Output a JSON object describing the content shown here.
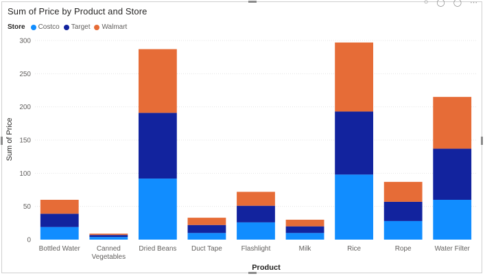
{
  "chart_data": {
    "type": "bar",
    "stacked": true,
    "title": "Sum of Price by Product and Store",
    "xlabel": "Product",
    "ylabel": "Sum of Price",
    "ylim": [
      0,
      300
    ],
    "yticks": [
      0,
      50,
      100,
      150,
      200,
      250,
      300
    ],
    "grid": true,
    "legend_position": "top-left",
    "legend_title": "Store",
    "categories": [
      "Bottled Water",
      "Canned Vegetables",
      "Dried Beans",
      "Duct Tape",
      "Flashlight",
      "Milk",
      "Rice",
      "Rope",
      "Water Filter"
    ],
    "series": [
      {
        "name": "Costco",
        "color": "#118dff",
        "values": [
          19,
          4,
          92,
          10,
          26,
          10,
          98,
          28,
          60
        ]
      },
      {
        "name": "Target",
        "color": "#12239e",
        "values": [
          20,
          3,
          99,
          12,
          25,
          10,
          95,
          29,
          77
        ]
      },
      {
        "name": "Walmart",
        "color": "#e66c37",
        "values": [
          21,
          2,
          96,
          11,
          21,
          10,
          104,
          30,
          78
        ]
      }
    ]
  }
}
